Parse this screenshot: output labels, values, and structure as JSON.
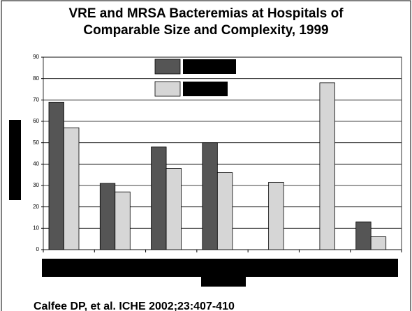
{
  "chart_data": {
    "type": "bar",
    "title": [
      "VRE and MRSA Bacteremias at Hospitals of",
      "Comparable Size and Complexity, 1999"
    ],
    "source": "Calfee DP, et al. ICHE 2002;23:407-410",
    "categories": [
      null,
      null,
      null,
      null,
      null,
      null,
      null
    ],
    "series": [
      {
        "color": "#555555",
        "values": [
          69,
          31,
          48,
          50,
          null,
          null,
          13
        ]
      },
      {
        "color": "#d6d6d6",
        "values": [
          57,
          27,
          38,
          36,
          31.5,
          78,
          6
        ]
      }
    ],
    "ylim": [
      0,
      90
    ],
    "yticks": [
      0,
      10,
      20,
      30,
      40,
      50,
      60,
      70,
      80,
      90
    ],
    "grid": true
  }
}
